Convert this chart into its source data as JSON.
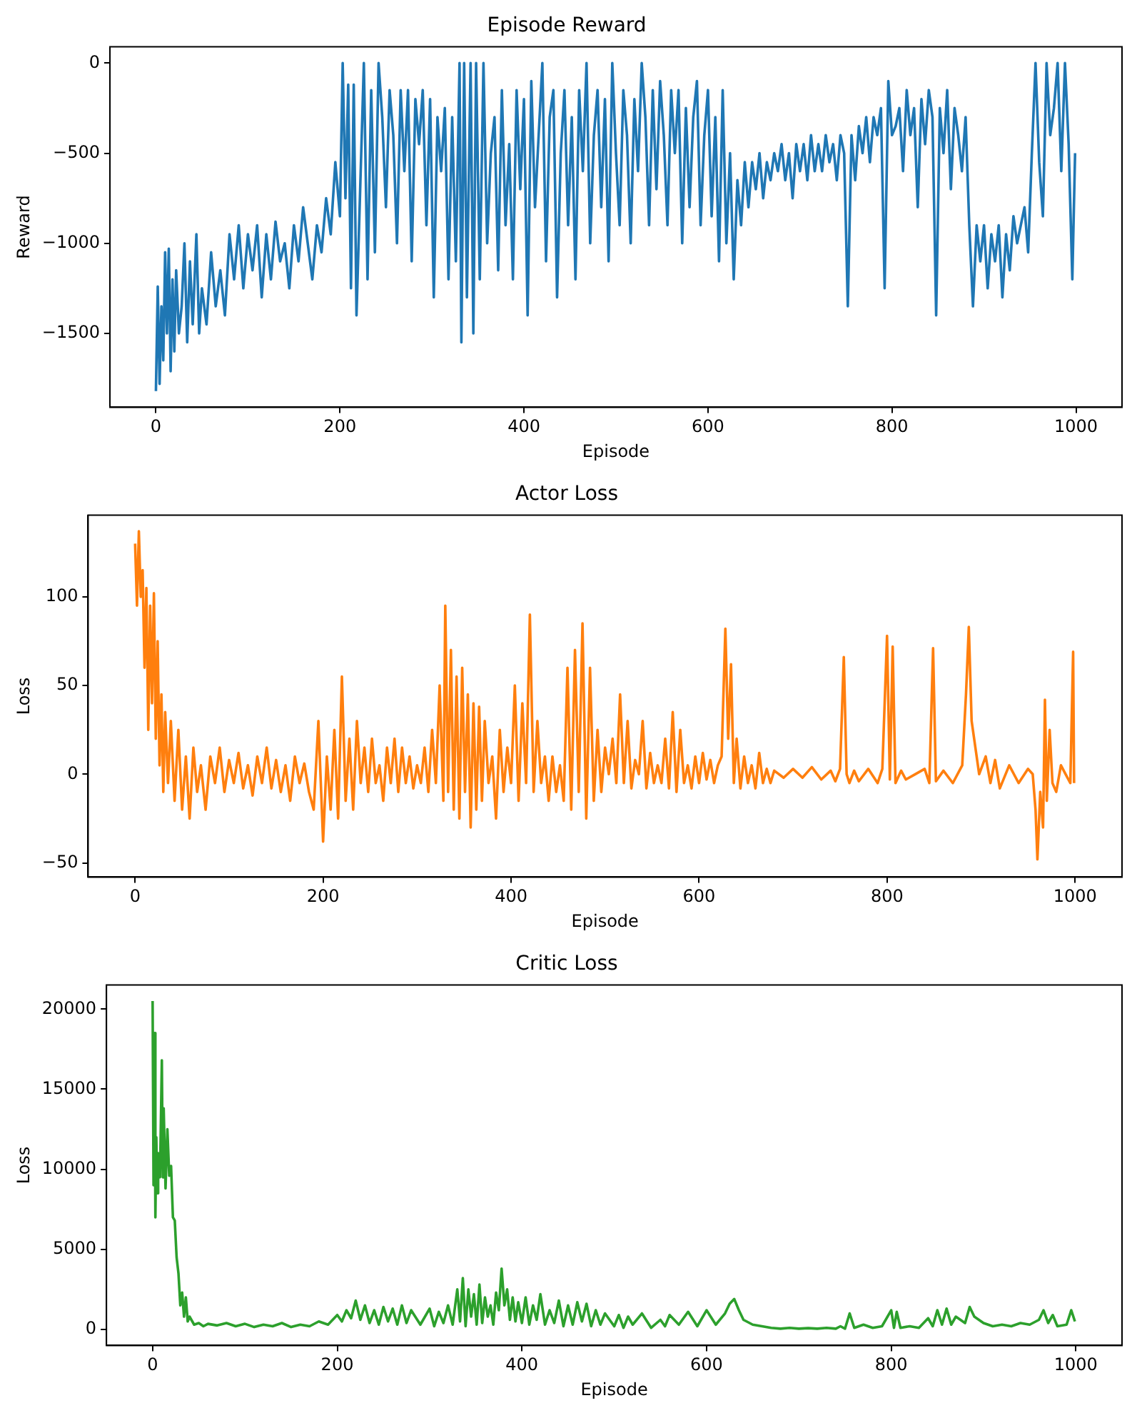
{
  "chart_data": [
    {
      "type": "line",
      "title": "Episode Reward",
      "xlabel": "Episode",
      "ylabel": "Reward",
      "xlim": [
        -50,
        1050
      ],
      "xticks": [
        0,
        200,
        400,
        600,
        800,
        1000
      ],
      "ylim": [
        -1910,
        90
      ],
      "yticks": [
        -1500,
        -1000,
        -500,
        0
      ],
      "grid": false,
      "legend": false,
      "marker": "none",
      "line_style": "solid",
      "series": [
        {
          "color": "#1f77b4",
          "x": [
            0,
            2,
            4,
            6,
            8,
            10,
            12,
            14,
            16,
            18,
            20,
            22,
            25,
            28,
            31,
            34,
            37,
            40,
            44,
            47,
            50,
            55,
            60,
            65,
            70,
            75,
            80,
            85,
            90,
            95,
            100,
            105,
            110,
            115,
            120,
            125,
            130,
            135,
            140,
            145,
            150,
            155,
            160,
            165,
            170,
            175,
            180,
            185,
            190,
            195,
            200,
            203,
            206,
            209,
            212,
            215,
            218,
            222,
            226,
            230,
            234,
            238,
            242,
            246,
            250,
            254,
            258,
            262,
            266,
            270,
            274,
            278,
            282,
            286,
            290,
            294,
            298,
            302,
            306,
            310,
            314,
            318,
            322,
            326,
            330,
            332,
            335,
            338,
            342,
            345,
            348,
            352,
            356,
            360,
            364,
            368,
            372,
            376,
            380,
            384,
            388,
            392,
            396,
            400,
            404,
            408,
            412,
            416,
            420,
            424,
            428,
            432,
            436,
            440,
            444,
            448,
            452,
            456,
            460,
            464,
            468,
            472,
            476,
            480,
            484,
            488,
            492,
            496,
            500,
            504,
            508,
            512,
            516,
            520,
            524,
            528,
            532,
            536,
            540,
            544,
            548,
            552,
            556,
            560,
            564,
            568,
            572,
            576,
            580,
            584,
            588,
            592,
            596,
            600,
            604,
            608,
            612,
            616,
            620,
            624,
            628,
            632,
            636,
            640,
            644,
            648,
            652,
            656,
            660,
            664,
            668,
            672,
            676,
            680,
            684,
            688,
            692,
            696,
            700,
            704,
            708,
            712,
            716,
            720,
            724,
            728,
            732,
            736,
            740,
            744,
            748,
            752,
            756,
            760,
            764,
            768,
            772,
            776,
            780,
            784,
            788,
            792,
            796,
            800,
            804,
            808,
            812,
            816,
            820,
            824,
            828,
            832,
            836,
            840,
            844,
            848,
            852,
            856,
            860,
            864,
            868,
            872,
            876,
            880,
            884,
            888,
            892,
            896,
            900,
            904,
            908,
            912,
            916,
            920,
            924,
            928,
            932,
            936,
            940,
            944,
            948,
            952,
            956,
            960,
            964,
            968,
            972,
            976,
            980,
            984,
            988,
            992,
            996,
            999
          ],
          "values": [
            -1820,
            -1240,
            -1780,
            -1350,
            -1650,
            -1050,
            -1500,
            -1030,
            -1710,
            -1200,
            -1600,
            -1150,
            -1500,
            -1350,
            -1000,
            -1550,
            -1100,
            -1450,
            -950,
            -1500,
            -1250,
            -1450,
            -1050,
            -1350,
            -1150,
            -1400,
            -950,
            -1200,
            -900,
            -1250,
            -950,
            -1150,
            -900,
            -1300,
            -950,
            -1200,
            -880,
            -1100,
            -1000,
            -1250,
            -900,
            -1100,
            -800,
            -1000,
            -1200,
            -900,
            -1050,
            -750,
            -950,
            -550,
            -850,
            0,
            -750,
            -120,
            -1250,
            -120,
            -1400,
            -700,
            0,
            -1200,
            -150,
            -1050,
            0,
            -300,
            -800,
            -150,
            -400,
            -1000,
            -150,
            -600,
            -150,
            -1100,
            -200,
            -450,
            -150,
            -900,
            -200,
            -1300,
            -300,
            -600,
            -250,
            -1200,
            -300,
            -1100,
            0,
            -1550,
            0,
            -1300,
            0,
            -1500,
            0,
            -1200,
            0,
            -1000,
            -500,
            -300,
            -1150,
            -150,
            -900,
            -450,
            -1200,
            -150,
            -700,
            -200,
            -1400,
            -100,
            -800,
            -400,
            0,
            -1100,
            -300,
            -150,
            -1300,
            -500,
            -150,
            -900,
            -300,
            -1200,
            -150,
            -600,
            0,
            -1000,
            -400,
            -150,
            -800,
            -200,
            -1100,
            0,
            -500,
            -900,
            -150,
            -400,
            -1000,
            -200,
            -600,
            0,
            -300,
            -900,
            -150,
            -700,
            -100,
            -400,
            -900,
            -150,
            -500,
            -150,
            -1000,
            -250,
            -800,
            -300,
            -100,
            -900,
            -400,
            -150,
            -850,
            -300,
            -1100,
            -150,
            -1000,
            -500,
            -1200,
            -650,
            -900,
            -550,
            -800,
            -550,
            -700,
            -500,
            -750,
            -550,
            -650,
            -500,
            -600,
            -450,
            -650,
            -500,
            -750,
            -450,
            -600,
            -450,
            -650,
            -400,
            -600,
            -450,
            -600,
            -400,
            -550,
            -450,
            -650,
            -400,
            -500,
            -1350,
            -400,
            -650,
            -350,
            -500,
            -300,
            -550,
            -300,
            -400,
            -250,
            -1250,
            -100,
            -400,
            -350,
            -250,
            -600,
            -150,
            -400,
            -250,
            -800,
            -200,
            -450,
            -150,
            -300,
            -1400,
            -250,
            -500,
            -150,
            -700,
            -250,
            -400,
            -600,
            -300,
            -900,
            -1350,
            -900,
            -1100,
            -900,
            -1250,
            -950,
            -1100,
            -900,
            -1300,
            -950,
            -1150,
            -850,
            -1000,
            -900,
            -800,
            -1050,
            -500,
            0,
            -550,
            -850,
            0,
            -400,
            -250,
            0,
            -600,
            0,
            -450,
            -1200,
            -500
          ]
        }
      ]
    },
    {
      "type": "line",
      "title": "Actor Loss",
      "xlabel": "Episode",
      "ylabel": "Loss",
      "xlim": [
        -50,
        1050
      ],
      "xticks": [
        0,
        200,
        400,
        600,
        800,
        1000
      ],
      "ylim": [
        -58,
        146
      ],
      "yticks": [
        -50,
        0,
        50,
        100
      ],
      "grid": false,
      "legend": false,
      "marker": "none",
      "line_style": "solid",
      "series": [
        {
          "color": "#ff7f0e",
          "x": [
            0,
            2,
            4,
            6,
            8,
            10,
            12,
            14,
            16,
            18,
            20,
            22,
            24,
            26,
            28,
            30,
            32,
            35,
            38,
            42,
            46,
            50,
            54,
            58,
            62,
            66,
            70,
            75,
            80,
            85,
            90,
            95,
            100,
            105,
            110,
            115,
            120,
            125,
            130,
            135,
            140,
            145,
            150,
            155,
            160,
            165,
            170,
            175,
            180,
            185,
            190,
            195,
            200,
            204,
            208,
            212,
            216,
            220,
            224,
            228,
            232,
            236,
            240,
            244,
            248,
            252,
            256,
            260,
            264,
            268,
            272,
            276,
            280,
            284,
            288,
            292,
            296,
            300,
            304,
            308,
            312,
            316,
            320,
            324,
            328,
            330,
            333,
            336,
            339,
            342,
            345,
            348,
            351,
            354,
            357,
            360,
            363,
            366,
            369,
            372,
            376,
            380,
            384,
            388,
            392,
            396,
            400,
            404,
            408,
            412,
            416,
            420,
            424,
            428,
            432,
            436,
            440,
            444,
            448,
            452,
            456,
            460,
            464,
            468,
            472,
            476,
            480,
            484,
            488,
            492,
            496,
            500,
            504,
            508,
            512,
            516,
            520,
            524,
            528,
            532,
            536,
            540,
            544,
            548,
            552,
            556,
            560,
            564,
            568,
            572,
            576,
            580,
            584,
            588,
            592,
            596,
            600,
            604,
            608,
            612,
            616,
            620,
            624,
            628,
            631,
            634,
            637,
            640,
            644,
            648,
            652,
            656,
            660,
            664,
            668,
            672,
            676,
            680,
            690,
            700,
            710,
            720,
            730,
            740,
            745,
            750,
            754,
            757,
            760,
            765,
            770,
            780,
            790,
            795,
            800,
            803,
            806,
            809,
            815,
            820,
            830,
            840,
            845,
            849,
            852,
            860,
            870,
            880,
            884,
            887,
            890,
            894,
            898,
            905,
            910,
            915,
            920,
            930,
            940,
            950,
            955,
            958,
            960,
            963,
            966,
            968,
            970,
            973,
            976,
            980,
            985,
            990,
            995,
            998,
            999
          ],
          "values": [
            130,
            95,
            137,
            100,
            115,
            60,
            105,
            25,
            95,
            40,
            102,
            20,
            75,
            5,
            45,
            -10,
            35,
            -5,
            30,
            -15,
            25,
            -20,
            10,
            -25,
            15,
            -10,
            5,
            -20,
            10,
            -5,
            15,
            -10,
            8,
            -5,
            12,
            -8,
            5,
            -12,
            10,
            -5,
            15,
            -8,
            8,
            -10,
            5,
            -15,
            10,
            -5,
            6,
            -10,
            -20,
            30,
            -38,
            10,
            -20,
            25,
            -25,
            55,
            -15,
            20,
            -20,
            30,
            -5,
            15,
            -10,
            20,
            -5,
            5,
            -15,
            15,
            -5,
            20,
            -10,
            15,
            -5,
            10,
            -8,
            5,
            -5,
            15,
            -10,
            25,
            -5,
            50,
            -15,
            95,
            -10,
            70,
            -20,
            55,
            -25,
            60,
            -10,
            45,
            -30,
            40,
            -20,
            38,
            -15,
            30,
            -5,
            10,
            -25,
            25,
            -10,
            15,
            -5,
            50,
            -15,
            40,
            -5,
            90,
            -10,
            30,
            -5,
            10,
            -15,
            10,
            -10,
            5,
            -15,
            60,
            -20,
            70,
            -10,
            85,
            -25,
            60,
            -15,
            25,
            -10,
            15,
            0,
            20,
            -5,
            45,
            -5,
            30,
            -8,
            8,
            0,
            30,
            -8,
            12,
            -5,
            5,
            -5,
            20,
            -8,
            35,
            -10,
            25,
            -5,
            5,
            -8,
            10,
            -5,
            12,
            -3,
            8,
            -5,
            5,
            10,
            82,
            20,
            62,
            -5,
            20,
            -8,
            10,
            -5,
            5,
            -8,
            12,
            -5,
            3,
            -5,
            2,
            -2,
            3,
            -2,
            4,
            -3,
            2,
            -4,
            3,
            66,
            0,
            -5,
            2,
            -4,
            3,
            -5,
            3,
            78,
            -3,
            72,
            -5,
            2,
            -3,
            0,
            3,
            -5,
            71,
            -4,
            2,
            -5,
            5,
            45,
            83,
            30,
            15,
            0,
            10,
            -5,
            8,
            -8,
            5,
            -5,
            3,
            0,
            -20,
            -48,
            -10,
            -30,
            42,
            -15,
            25,
            -5,
            -10,
            5,
            0,
            -5,
            69,
            -5
          ]
        }
      ]
    },
    {
      "type": "line",
      "title": "Critic Loss",
      "xlabel": "Episode",
      "ylabel": "Loss",
      "xlim": [
        -50,
        1050
      ],
      "xticks": [
        0,
        200,
        400,
        600,
        800,
        1000
      ],
      "ylim": [
        -1000,
        21500
      ],
      "yticks": [
        0,
        5000,
        10000,
        15000,
        20000
      ],
      "grid": false,
      "legend": false,
      "marker": "none",
      "line_style": "solid",
      "series": [
        {
          "color": "#2ca02c",
          "x": [
            0,
            1,
            2,
            3,
            4,
            5,
            6,
            8,
            10,
            11,
            12,
            14,
            16,
            18,
            20,
            22,
            24,
            26,
            28,
            30,
            32,
            34,
            36,
            38,
            40,
            45,
            50,
            55,
            60,
            70,
            80,
            90,
            100,
            110,
            120,
            130,
            140,
            150,
            160,
            170,
            180,
            190,
            200,
            205,
            210,
            215,
            220,
            225,
            230,
            235,
            240,
            245,
            250,
            255,
            260,
            265,
            270,
            275,
            280,
            290,
            300,
            305,
            310,
            315,
            320,
            325,
            330,
            333,
            336,
            339,
            342,
            345,
            348,
            351,
            354,
            357,
            360,
            363,
            366,
            369,
            372,
            375,
            378,
            381,
            384,
            387,
            390,
            393,
            396,
            400,
            404,
            408,
            412,
            416,
            420,
            425,
            430,
            435,
            440,
            445,
            450,
            455,
            460,
            465,
            470,
            475,
            480,
            485,
            490,
            500,
            505,
            510,
            515,
            520,
            530,
            540,
            550,
            555,
            560,
            570,
            580,
            590,
            600,
            610,
            620,
            625,
            630,
            635,
            640,
            650,
            660,
            670,
            680,
            690,
            700,
            710,
            720,
            730,
            740,
            745,
            750,
            755,
            760,
            770,
            780,
            790,
            800,
            803,
            806,
            810,
            820,
            830,
            840,
            845,
            850,
            855,
            860,
            865,
            870,
            880,
            885,
            890,
            900,
            910,
            920,
            930,
            940,
            950,
            960,
            965,
            970,
            975,
            980,
            990,
            995,
            999
          ],
          "values": [
            20500,
            9000,
            18500,
            7000,
            12000,
            8500,
            11000,
            9500,
            16800,
            9500,
            13800,
            8800,
            12500,
            9600,
            10200,
            7000,
            6800,
            4500,
            3500,
            1500,
            2300,
            800,
            2000,
            500,
            800,
            300,
            400,
            200,
            350,
            250,
            400,
            200,
            350,
            150,
            300,
            200,
            400,
            150,
            300,
            200,
            500,
            300,
            900,
            500,
            1200,
            700,
            1800,
            600,
            1500,
            400,
            1200,
            300,
            1400,
            500,
            1300,
            300,
            1500,
            400,
            1200,
            300,
            1300,
            200,
            1100,
            400,
            1500,
            300,
            2500,
            500,
            3200,
            200,
            2500,
            800,
            2200,
            300,
            2800,
            400,
            2000,
            800,
            1500,
            300,
            2300,
            1200,
            3800,
            1500,
            2500,
            600,
            2000,
            500,
            1700,
            400,
            2000,
            300,
            1500,
            600,
            2200,
            300,
            1200,
            400,
            1800,
            200,
            1500,
            300,
            1700,
            500,
            1600,
            200,
            1200,
            300,
            1000,
            200,
            900,
            100,
            800,
            300,
            1000,
            100,
            600,
            200,
            900,
            300,
            1100,
            200,
            1200,
            300,
            1000,
            1600,
            1900,
            1200,
            600,
            300,
            200,
            100,
            50,
            100,
            50,
            80,
            50,
            100,
            50,
            200,
            50,
            1000,
            100,
            300,
            100,
            200,
            1200,
            100,
            1100,
            100,
            200,
            100,
            700,
            200,
            1200,
            300,
            1300,
            300,
            800,
            400,
            1400,
            800,
            400,
            200,
            300,
            200,
            400,
            300,
            600,
            1200,
            400,
            900,
            200,
            300,
            1200,
            500
          ]
        }
      ]
    }
  ]
}
